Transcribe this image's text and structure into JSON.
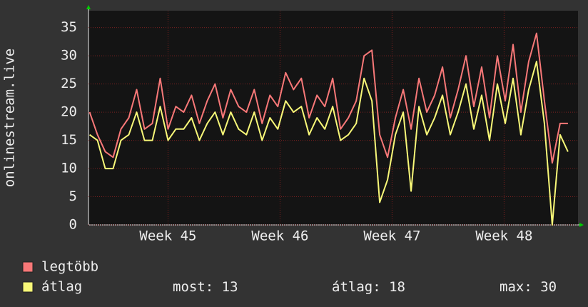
{
  "chart_data": {
    "type": "line",
    "y_label": "onlinestream.live",
    "x": [
      44.3,
      44.37,
      44.44,
      44.51,
      44.58,
      44.65,
      44.72,
      44.79,
      44.86,
      44.93,
      45.0,
      45.07,
      45.14,
      45.21,
      45.28,
      45.35,
      45.42,
      45.49,
      45.56,
      45.63,
      45.7,
      45.77,
      45.84,
      45.91,
      45.98,
      46.05,
      46.12,
      46.19,
      46.26,
      46.33,
      46.4,
      46.47,
      46.54,
      46.61,
      46.68,
      46.75,
      46.82,
      46.89,
      46.96,
      47.03,
      47.1,
      47.17,
      47.24,
      47.31,
      47.38,
      47.45,
      47.52,
      47.59,
      47.66,
      47.73,
      47.8,
      47.87,
      47.94,
      48.01,
      48.08,
      48.15,
      48.22,
      48.29,
      48.36,
      48.43,
      48.5,
      48.57
    ],
    "series": [
      {
        "name": "legtöbb",
        "color": "#f87878",
        "values": [
          20,
          16,
          13,
          12,
          17,
          19,
          24,
          17,
          18,
          26,
          17,
          21,
          20,
          23,
          18,
          22,
          25,
          19,
          24,
          21,
          20,
          24,
          18,
          23,
          21,
          27,
          24,
          26,
          19,
          23,
          21,
          26,
          17,
          19,
          22,
          30,
          31,
          16,
          12,
          19,
          24,
          17,
          26,
          20,
          23,
          28,
          19,
          24,
          30,
          21,
          28,
          19,
          30,
          22,
          32,
          20,
          29,
          34,
          22,
          11,
          18,
          18
        ]
      },
      {
        "name": "átlag",
        "color": "#f8f878",
        "values": [
          16,
          15,
          10,
          10,
          15,
          16,
          20,
          15,
          15,
          21,
          15,
          17,
          17,
          19,
          15,
          18,
          20,
          16,
          20,
          17,
          16,
          20,
          15,
          19,
          17,
          22,
          20,
          21,
          16,
          19,
          17,
          21,
          15,
          16,
          18,
          26,
          22,
          4,
          8,
          16,
          20,
          6,
          21,
          16,
          19,
          23,
          16,
          20,
          25,
          17,
          23,
          15,
          25,
          18,
          26,
          16,
          24,
          29,
          18,
          0,
          16,
          13
        ]
      }
    ],
    "xlim": [
      44.29,
      48.66
    ],
    "xticks": [
      {
        "value": 45,
        "label": "Week 45"
      },
      {
        "value": 46,
        "label": "Week 46"
      },
      {
        "value": 47,
        "label": "Week 47"
      },
      {
        "value": 48,
        "label": "Week 48"
      }
    ],
    "ylim": [
      0,
      38
    ],
    "yticks": [
      0,
      5,
      10,
      15,
      20,
      25,
      30,
      35
    ],
    "grid": true,
    "stats": [
      {
        "label": "most:",
        "value": 13
      },
      {
        "label": "átlag:",
        "value": 18
      },
      {
        "label": "max:",
        "value": 30
      }
    ]
  }
}
